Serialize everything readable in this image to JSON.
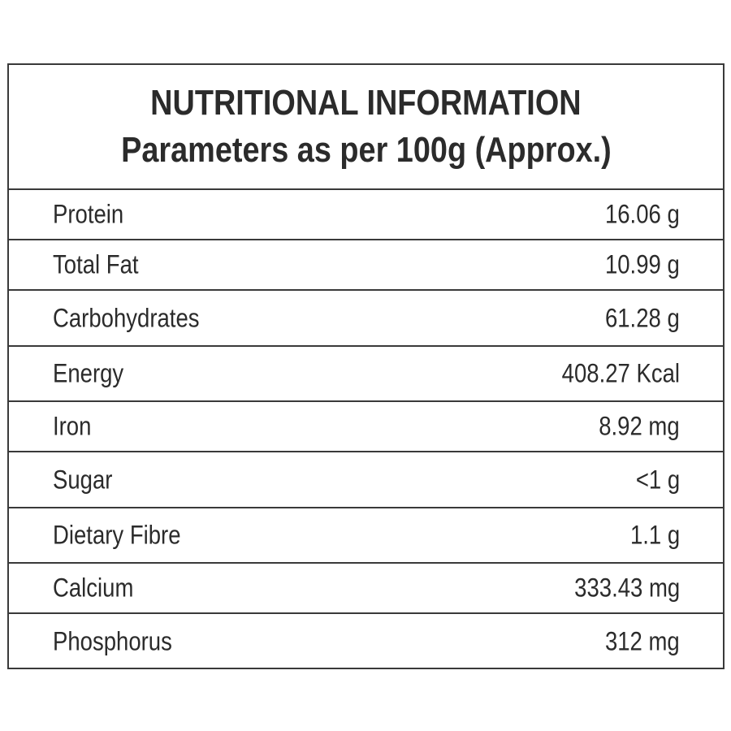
{
  "header": {
    "title": "NUTRITIONAL INFORMATION",
    "subtitle": "Parameters as per 100g (Approx.)"
  },
  "rows": [
    {
      "label": "Protein",
      "value": "16.06 g"
    },
    {
      "label": "Total Fat",
      "value": "10.99 g"
    },
    {
      "label": "Carbohydrates",
      "value": "61.28 g"
    },
    {
      "label": "Energy",
      "value": "408.27 Kcal"
    },
    {
      "label": "Iron",
      "value": "8.92 mg"
    },
    {
      "label": "Sugar",
      "value": "<1 g"
    },
    {
      "label": "Dietary Fibre",
      "value": "1.1 g"
    },
    {
      "label": "Calcium",
      "value": "333.43 mg"
    },
    {
      "label": "Phosphorus",
      "value": "312 mg"
    }
  ]
}
